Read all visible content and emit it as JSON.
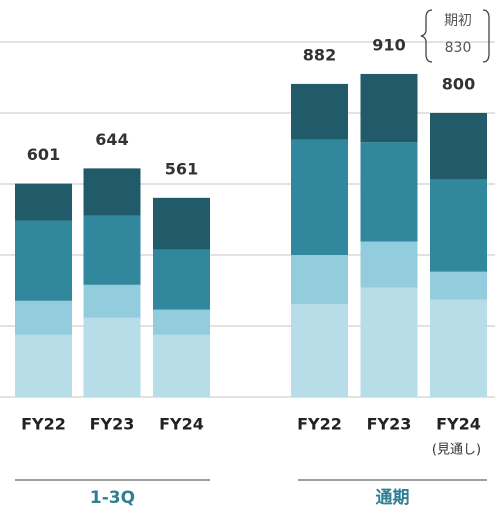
{
  "chart_data": {
    "type": "stacked_bar",
    "categories": [
      "FY22",
      "FY23",
      "FY24",
      "FY22",
      "FY23",
      "FY24"
    ],
    "category_notes": [
      null,
      null,
      null,
      null,
      null,
      "(見通し)"
    ],
    "groups": [
      "1-3Q",
      "通期"
    ],
    "totals": [
      601,
      644,
      561,
      882,
      910,
      800
    ],
    "series": [
      {
        "color": "#b7dde8",
        "values": [
          175,
          223,
          175,
          262,
          308,
          274
        ]
      },
      {
        "color": "#93cddd",
        "values": [
          96,
          93,
          71,
          138,
          130,
          79
        ]
      },
      {
        "color": "#31879c",
        "values": [
          226,
          195,
          169,
          325,
          280,
          260
        ]
      },
      {
        "color": "#215a68",
        "values": [
          104,
          133,
          146,
          157,
          192,
          187
        ]
      }
    ],
    "annotation": {
      "text": "期初",
      "value": 830
    },
    "ylim": [
      0,
      1000
    ],
    "yticks": [
      0,
      200,
      400,
      600,
      800,
      1000
    ],
    "grid": true
  }
}
